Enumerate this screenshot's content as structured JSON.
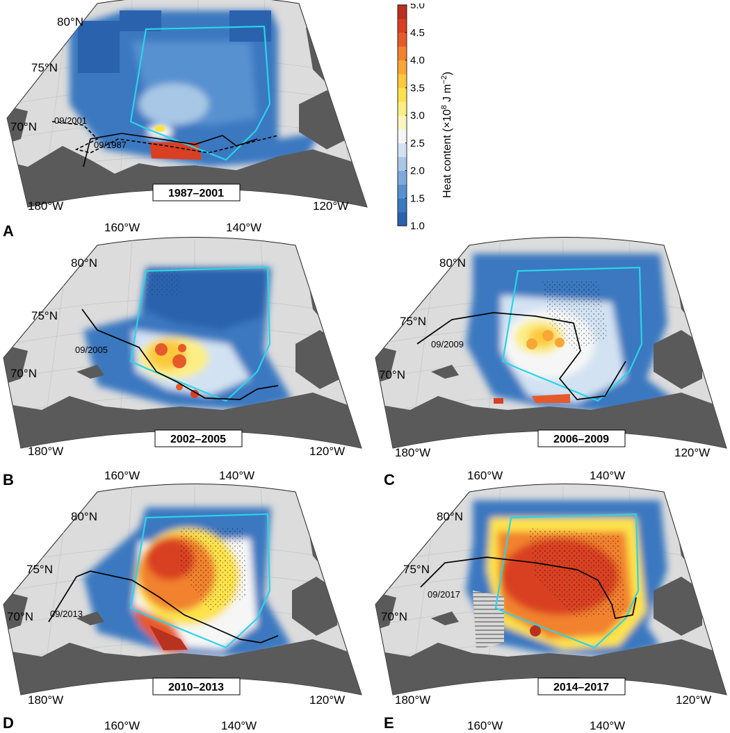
{
  "colors": {
    "ocean": "#dcdcdc",
    "land": "#5a5a5a",
    "box": "#29d4e8",
    "grid": "#c6c6c6"
  },
  "colorbar": {
    "label_main": "Heat content (×10",
    "label_exp": "8",
    "label_unit": " J m",
    "label_unit_exp": "−2",
    "label_close": ")",
    "ticks": [
      "5.0",
      "4.5",
      "4.0",
      "3.5",
      "3.0",
      "2.5",
      "2.0",
      "1.5",
      "1.0"
    ],
    "colors": [
      "#2a62ad",
      "#3a78c0",
      "#5891d0",
      "#7eaadb",
      "#a8c7e6",
      "#d2e2f2",
      "#f6f6f6",
      "#fbf5c0",
      "#fbee84",
      "#fde34b",
      "#fcc93d",
      "#f8a636",
      "#f2822f",
      "#e65a2a",
      "#d93f23",
      "#b83220"
    ]
  },
  "panels": [
    {
      "letter": "A",
      "period": "1987–2001",
      "lat80": "80°N",
      "lat75": "75°N",
      "lat70": "70°N",
      "lon180": "180°W",
      "lon160": "160°W",
      "lon140": "140°W",
      "lon120": "120°W",
      "isolines": [
        "09/2001",
        "09/1987"
      ]
    },
    {
      "letter": "B",
      "period": "2002–2005",
      "lat80": "80°N",
      "lat75": "75°N",
      "lat70": "70°N",
      "lon180": "180°W",
      "lon160": "160°W",
      "lon140": "140°W",
      "lon120": "120°W",
      "isolines": [
        "09/2005"
      ]
    },
    {
      "letter": "C",
      "period": "2006–2009",
      "lat80": "80°N",
      "lat75": "75°N",
      "lat70": "70°N",
      "lon180": "180°W",
      "lon160": "160°W",
      "lon140": "140°W",
      "lon120": "120°W",
      "isolines": [
        "09/2009"
      ]
    },
    {
      "letter": "D",
      "period": "2010–2013",
      "lat80": "80°N",
      "lat75": "75°N",
      "lat70": "70°N",
      "lon180": "180°W",
      "lon160": "160°W",
      "lon140": "140°W",
      "lon120": "120°W",
      "isolines": [
        "09/2013"
      ]
    },
    {
      "letter": "E",
      "period": "2014–2017",
      "lat80": "80°N",
      "lat75": "75°N",
      "lat70": "70°N",
      "lon180": "180°W",
      "lon160": "160°W",
      "lon140": "140°W",
      "lon120": "120°W",
      "isolines": [
        "09/2017"
      ]
    }
  ]
}
